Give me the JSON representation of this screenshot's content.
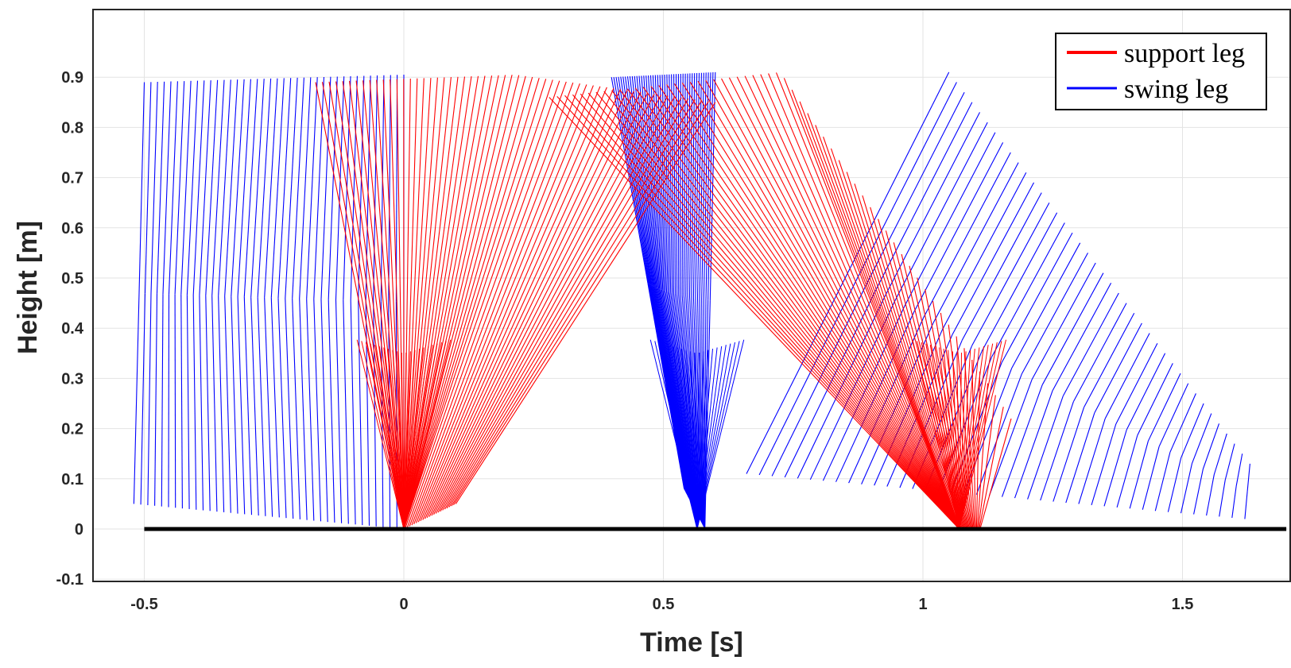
{
  "chart_data": {
    "type": "line",
    "title": "",
    "xlabel": "Time [s]",
    "ylabel": "Height [m]",
    "xlim": [
      -0.6,
      1.7
    ],
    "ylim": [
      -0.1,
      0.98
    ],
    "grid": true,
    "xticks": [
      -0.5,
      0,
      0.5,
      1,
      1.5
    ],
    "xtick_labels": [
      "-0.5",
      "0",
      "0.5",
      "1",
      "1.5"
    ],
    "yticks": [
      -0.1,
      0,
      0.1,
      0.2,
      0.3,
      0.4,
      0.5,
      0.6,
      0.7,
      0.8,
      0.9
    ],
    "ytick_labels": [
      "-0.1",
      "0",
      "0.1",
      "0.2",
      "0.3",
      "0.4",
      "0.5",
      "0.6",
      "0.7",
      "0.8",
      "0.9"
    ],
    "ground": {
      "x": [
        -0.5,
        1.7
      ],
      "y": 0,
      "color": "#000000"
    },
    "legend": {
      "position": "top-right",
      "entries": [
        {
          "label": "support leg",
          "color": "#ff0000"
        },
        {
          "label": "swing leg",
          "color": "#0000ff"
        }
      ]
    },
    "series": [
      {
        "name": "support leg",
        "color": "#ff0000",
        "phases": [
          {
            "t_start": -0.17,
            "t_end": 0.6,
            "hip_height": [
              0.89,
              0.905,
              0.85
            ],
            "foot_x": 0.0
          },
          {
            "t_start": 0.28,
            "t_end": 1.17,
            "hip_height": [
              0.86,
              0.91,
              0.22
            ],
            "foot_x": 1.07
          }
        ]
      },
      {
        "name": "swing leg",
        "color": "#0000ff",
        "phases": [
          {
            "t_start": -0.5,
            "t_end": 0.0,
            "foot_height": [
              0.05,
              0.0
            ],
            "hip_height": [
              0.89,
              0.905
            ]
          },
          {
            "t_start": 0.4,
            "t_end": 0.6,
            "foot_height": [
              0.02,
              0.0
            ],
            "hip_height": [
              0.9,
              0.91
            ]
          },
          {
            "t_start": 1.05,
            "t_end": 1.63,
            "foot_height": [
              0.1,
              0.02
            ],
            "hip_height": [
              0.91,
              0.13
            ]
          }
        ]
      }
    ]
  }
}
